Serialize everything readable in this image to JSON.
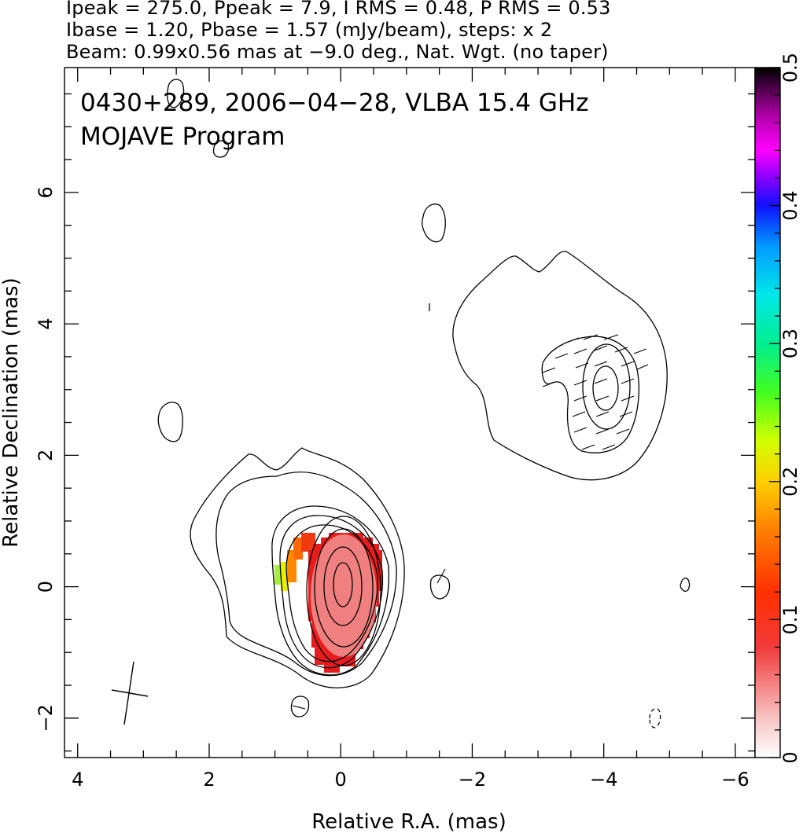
{
  "header": {
    "line1": "Ipeak = 275.0, Ppeak = 7.9, I RMS = 0.48, P RMS = 0.53",
    "line2": "Ibase = 1.20, Pbase = 1.57 (mJy/beam), steps: x 2",
    "line3": "Beam: 0.99x0.56 mas at −9.0 deg., Nat. Wgt. (no taper)"
  },
  "chart_data": {
    "type": "heatmap",
    "title": "0430+289, 2006−04−28, VLBA 15.4 GHz",
    "subtitle": "MOJAVE Program",
    "xlabel": "Relative R.A. (mas)",
    "ylabel": "Relative Declination (mas)",
    "xlim": [
      4.2,
      -6.3
    ],
    "ylim": [
      -2.6,
      7.9
    ],
    "x_ticks": [
      "4",
      "2",
      "0",
      "−2",
      "−4",
      "−6"
    ],
    "x_tick_values": [
      4,
      2,
      0,
      -2,
      -4,
      -6
    ],
    "y_ticks": [
      "−2",
      "0",
      "2",
      "4",
      "6"
    ],
    "y_tick_values": [
      -2,
      0,
      2,
      4,
      6
    ],
    "colorbar": {
      "range": [
        0,
        0.5
      ],
      "ticks": [
        "0",
        "0.1",
        "0.2",
        "0.3",
        "0.4",
        "0.5"
      ],
      "tick_values": [
        0,
        0.1,
        0.2,
        0.3,
        0.4,
        0.5
      ]
    },
    "core": {
      "x": 0.0,
      "y": 0.0
    },
    "jet_component": {
      "x": -4.0,
      "y": 3.0
    },
    "beam": {
      "major_mas": 0.99,
      "minor_mas": 0.56,
      "pa_deg": -9.0,
      "center": [
        3.25,
        -1.6
      ]
    },
    "colors": {
      "core_fill": "#f08080",
      "core_edge": "#e81c1c",
      "accent_orange": "#ff6a00",
      "accent_yellow": "#c8ff00"
    }
  }
}
